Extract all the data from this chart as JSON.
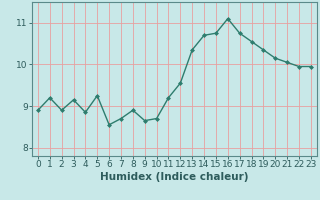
{
  "x": [
    0,
    1,
    2,
    3,
    4,
    5,
    6,
    7,
    8,
    9,
    10,
    11,
    12,
    13,
    14,
    15,
    16,
    17,
    18,
    19,
    20,
    21,
    22,
    23
  ],
  "y": [
    8.9,
    9.2,
    8.9,
    9.15,
    8.85,
    9.25,
    8.55,
    8.7,
    8.9,
    8.65,
    8.7,
    9.2,
    9.55,
    10.35,
    10.7,
    10.75,
    11.1,
    10.75,
    10.55,
    10.35,
    10.15,
    10.05,
    9.95,
    9.95
  ],
  "line_color": "#2e7d6e",
  "marker": "D",
  "marker_size": 2,
  "bg_color": "#c8e8e8",
  "grid_color": "#e8a0a0",
  "xlabel": "Humidex (Indice chaleur)",
  "xlim": [
    -0.5,
    23.5
  ],
  "ylim": [
    7.8,
    11.5
  ],
  "yticks": [
    8,
    9,
    10,
    11
  ],
  "xticks": [
    0,
    1,
    2,
    3,
    4,
    5,
    6,
    7,
    8,
    9,
    10,
    11,
    12,
    13,
    14,
    15,
    16,
    17,
    18,
    19,
    20,
    21,
    22,
    23
  ],
  "font_color": "#2e5c5c",
  "tick_fontsize": 6.5,
  "xlabel_fontsize": 7.5,
  "axis_bg": "#c8e8e8",
  "spine_color": "#5a8a8a",
  "line_width": 1.0
}
